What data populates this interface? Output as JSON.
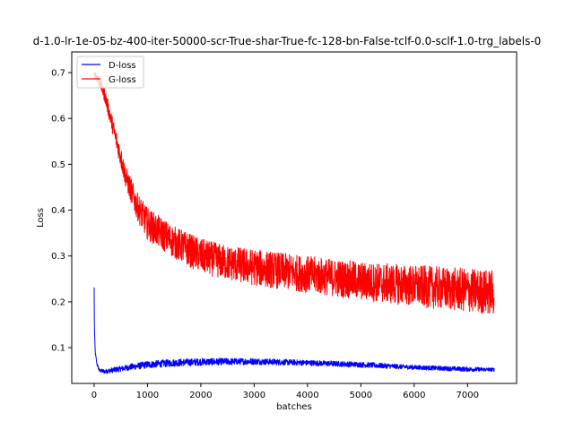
{
  "chart_data": {
    "type": "line",
    "title": "d-1.0-lr-1e-05-bz-400-iter-50000-scr-True-shar-True-fc-128-bn-False-tclf-0.0-sclf-1.0-trg_labels-0",
    "xlabel": "batches",
    "ylabel": "Loss",
    "xlim": [
      -420,
      7920
    ],
    "ylim": [
      0.022,
      0.745
    ],
    "xticks": [
      0,
      1000,
      2000,
      3000,
      4000,
      5000,
      6000,
      7000
    ],
    "yticks": [
      0.1,
      0.2,
      0.3,
      0.4,
      0.5,
      0.6,
      0.7
    ],
    "grid": false,
    "legend_position": "upper-left",
    "series": [
      {
        "name": "D-loss",
        "color": "#0000ff",
        "noise_amplitude": [
          0.004,
          0.004,
          0.003,
          0.003,
          0.004,
          0.005,
          0.006,
          0.007,
          0.008,
          0.008,
          0.008,
          0.007,
          0.006,
          0.006,
          0.005,
          0.005,
          0.004
        ],
        "x": [
          0,
          5,
          20,
          50,
          100,
          200,
          400,
          700,
          1000,
          1500,
          2000,
          3000,
          4000,
          5000,
          6000,
          7000,
          7500
        ],
        "y": [
          0.23,
          0.14,
          0.09,
          0.065,
          0.05,
          0.048,
          0.052,
          0.058,
          0.063,
          0.067,
          0.069,
          0.07,
          0.067,
          0.063,
          0.057,
          0.053,
          0.052
        ]
      },
      {
        "name": "G-loss",
        "color": "#ff0000",
        "noise_amplitude": [
          0.01,
          0.012,
          0.015,
          0.02,
          0.025,
          0.03,
          0.035,
          0.035,
          0.038,
          0.038,
          0.04,
          0.04,
          0.042,
          0.045,
          0.048,
          0.05
        ],
        "x": [
          0,
          100,
          200,
          400,
          600,
          800,
          1000,
          1500,
          2000,
          2500,
          3000,
          4000,
          5000,
          6000,
          7000,
          7500
        ],
        "y": [
          0.7,
          0.68,
          0.65,
          0.56,
          0.47,
          0.41,
          0.37,
          0.33,
          0.3,
          0.285,
          0.275,
          0.26,
          0.245,
          0.235,
          0.225,
          0.22
        ]
      }
    ]
  }
}
